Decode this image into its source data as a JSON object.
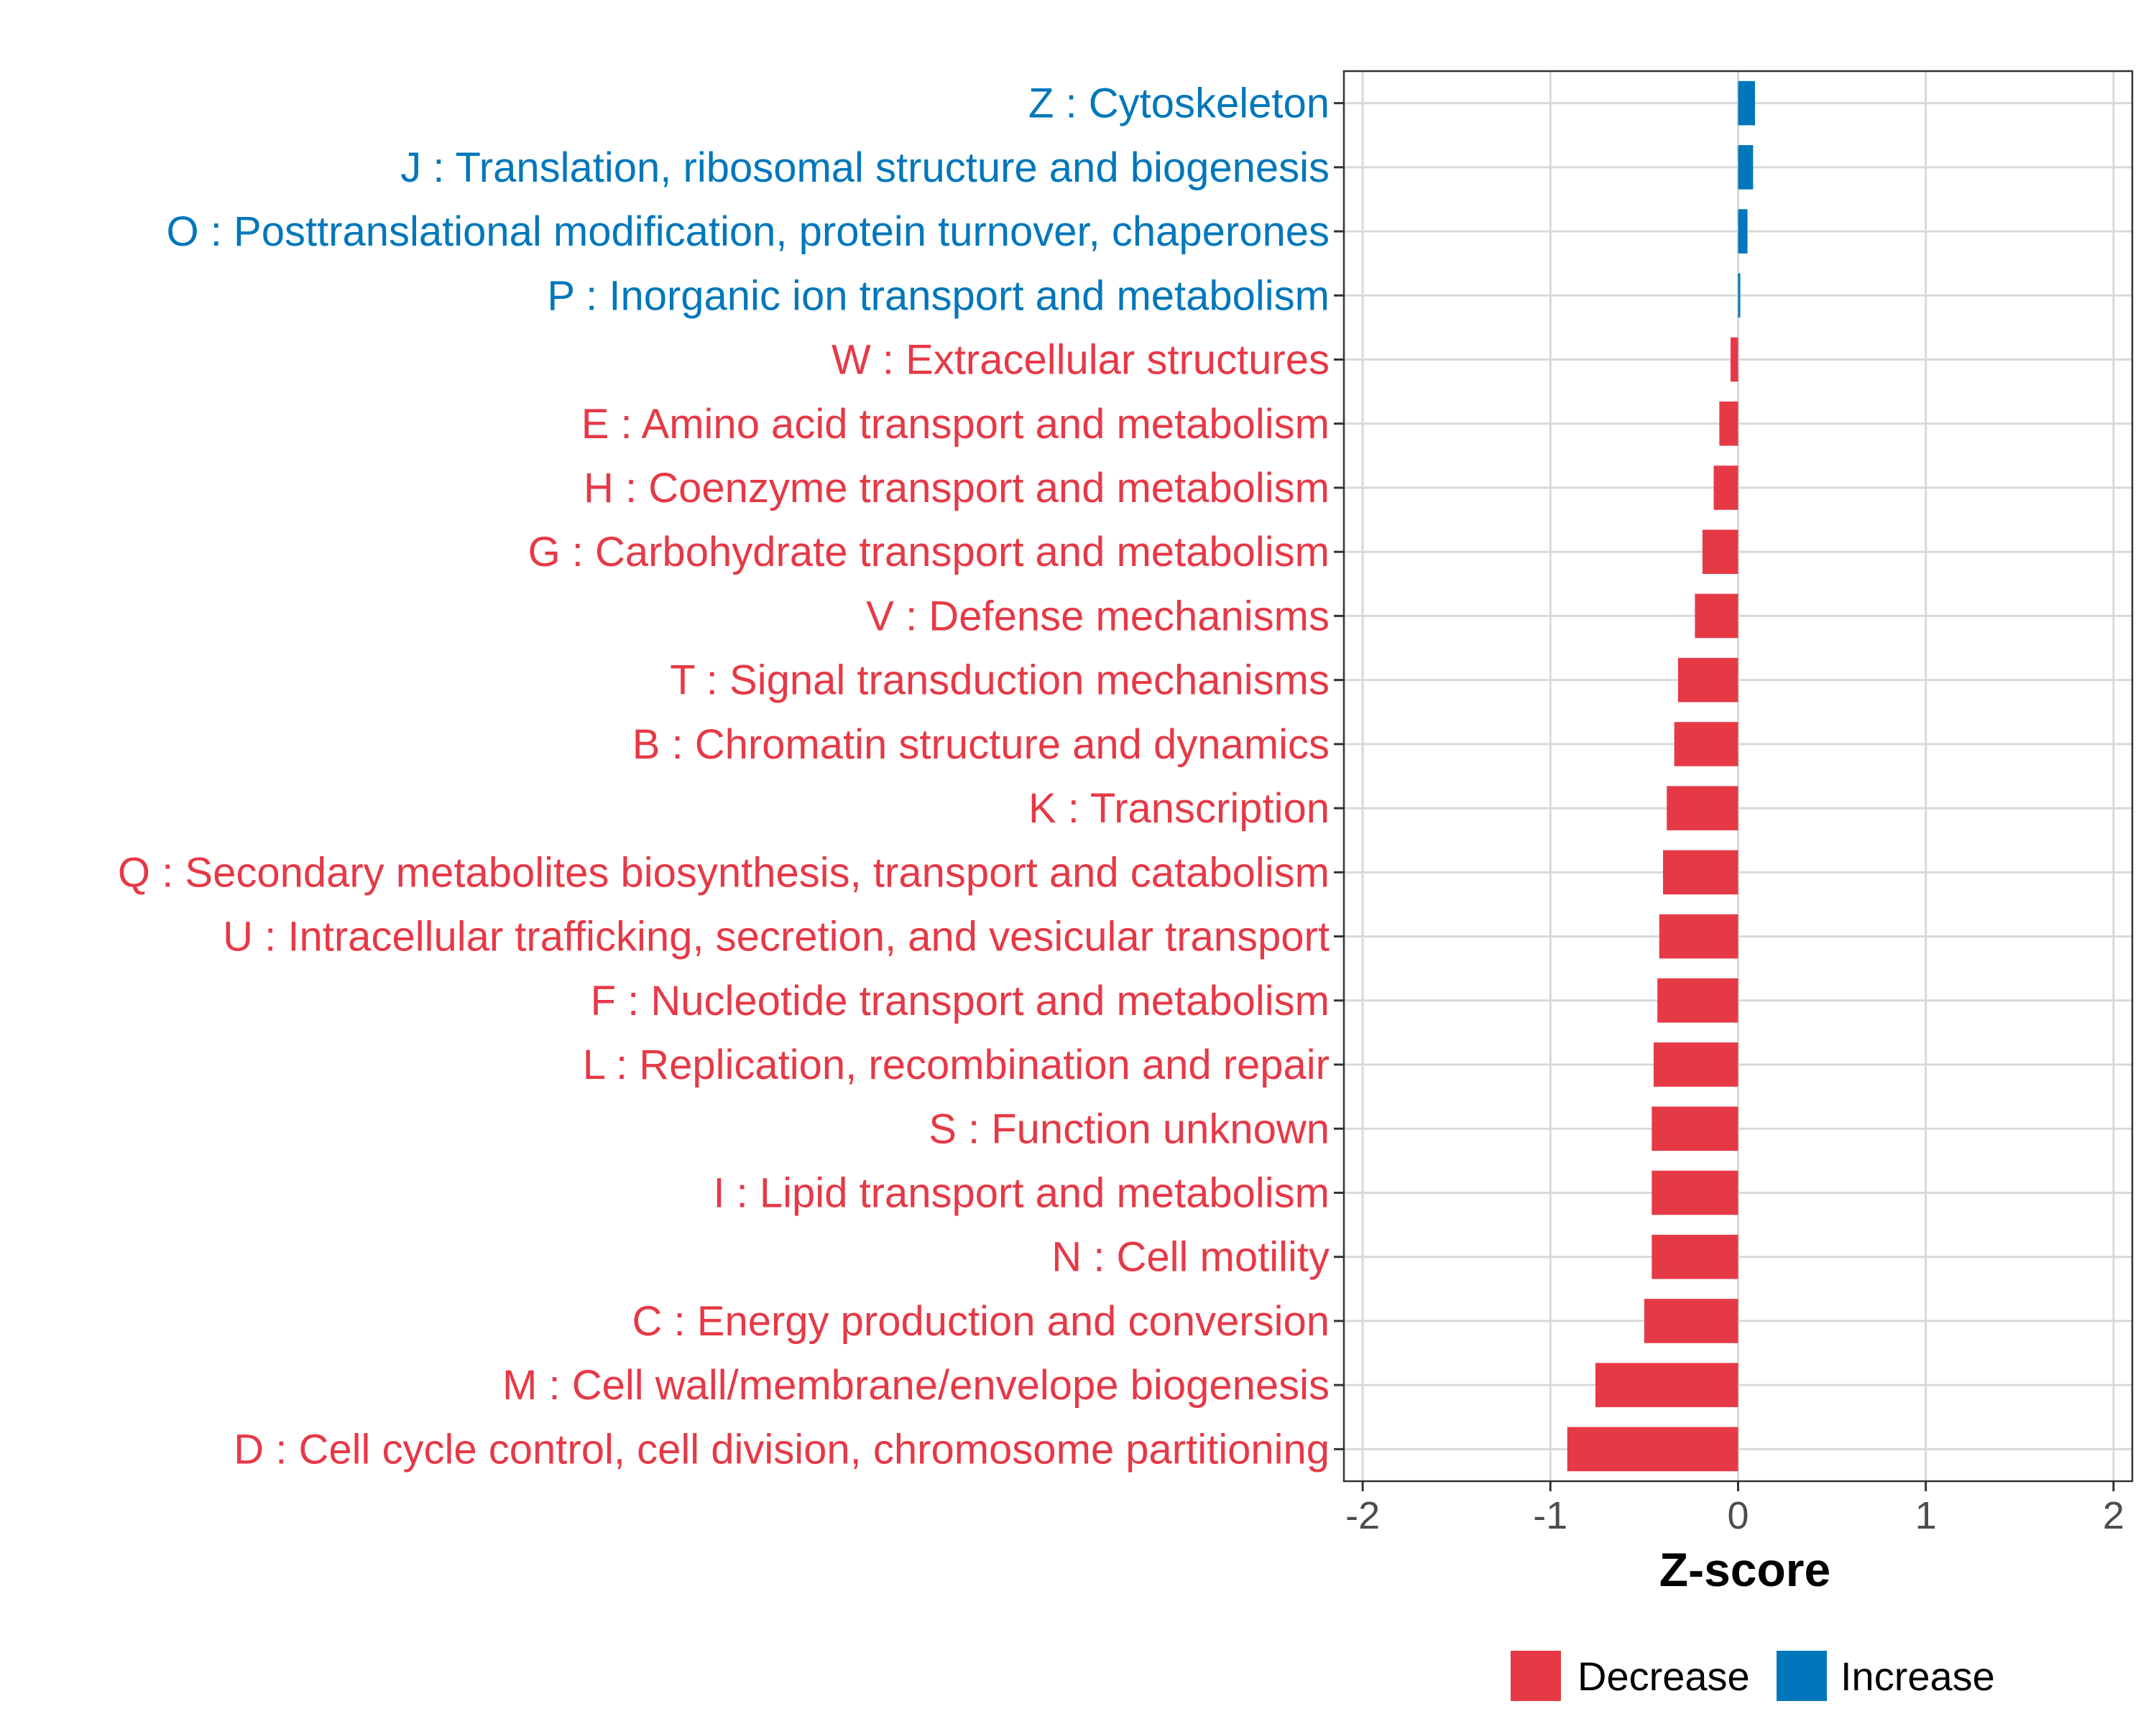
{
  "chart_data": {
    "type": "bar",
    "orientation": "horizontal",
    "title": "",
    "xlabel": "Z-score",
    "ylabel": "",
    "xlim": [
      -2.1,
      2.1
    ],
    "xticks": [
      -2,
      -1,
      0,
      1,
      2
    ],
    "xtick_labels": [
      "-2",
      "-1",
      "0",
      "1",
      "2"
    ],
    "grid": true,
    "legend": {
      "placement": "bottom",
      "entries": [
        {
          "name": "Decrease",
          "color": "#E63946"
        },
        {
          "name": "Increase",
          "color": "#0077BB"
        }
      ]
    },
    "categories": [
      "Z : Cytoskeleton",
      "J : Translation, ribosomal structure and biogenesis",
      "O : Posttranslational modification, protein turnover, chaperones",
      "P : Inorganic ion transport and metabolism",
      "W : Extracellular structures",
      "E : Amino acid transport and metabolism",
      "H : Coenzyme transport and metabolism",
      "G : Carbohydrate transport and metabolism",
      "V : Defense mechanisms",
      "T : Signal transduction mechanisms",
      "B : Chromatin structure and dynamics",
      "K : Transcription",
      "Q : Secondary metabolites biosynthesis, transport and catabolism",
      "U : Intracellular trafficking, secretion, and vesicular transport",
      "F : Nucleotide transport and metabolism",
      "L : Replication, recombination and repair",
      "S : Function unknown",
      "I : Lipid transport and metabolism",
      "N : Cell motility",
      "C : Energy production and conversion",
      "M : Cell wall/membrane/envelope biogenesis",
      "D : Cell cycle control, cell division, chromosome partitioning"
    ],
    "values": [
      0.09,
      0.08,
      0.05,
      0.01,
      -0.04,
      -0.1,
      -0.13,
      -0.19,
      -0.23,
      -0.32,
      -0.34,
      -0.38,
      -0.4,
      -0.42,
      -0.43,
      -0.45,
      -0.46,
      -0.46,
      -0.46,
      -0.5,
      -0.76,
      -0.91
    ],
    "groups": [
      "Increase",
      "Increase",
      "Increase",
      "Increase",
      "Decrease",
      "Decrease",
      "Decrease",
      "Decrease",
      "Decrease",
      "Decrease",
      "Decrease",
      "Decrease",
      "Decrease",
      "Decrease",
      "Decrease",
      "Decrease",
      "Decrease",
      "Decrease",
      "Decrease",
      "Decrease",
      "Decrease",
      "Decrease"
    ]
  }
}
